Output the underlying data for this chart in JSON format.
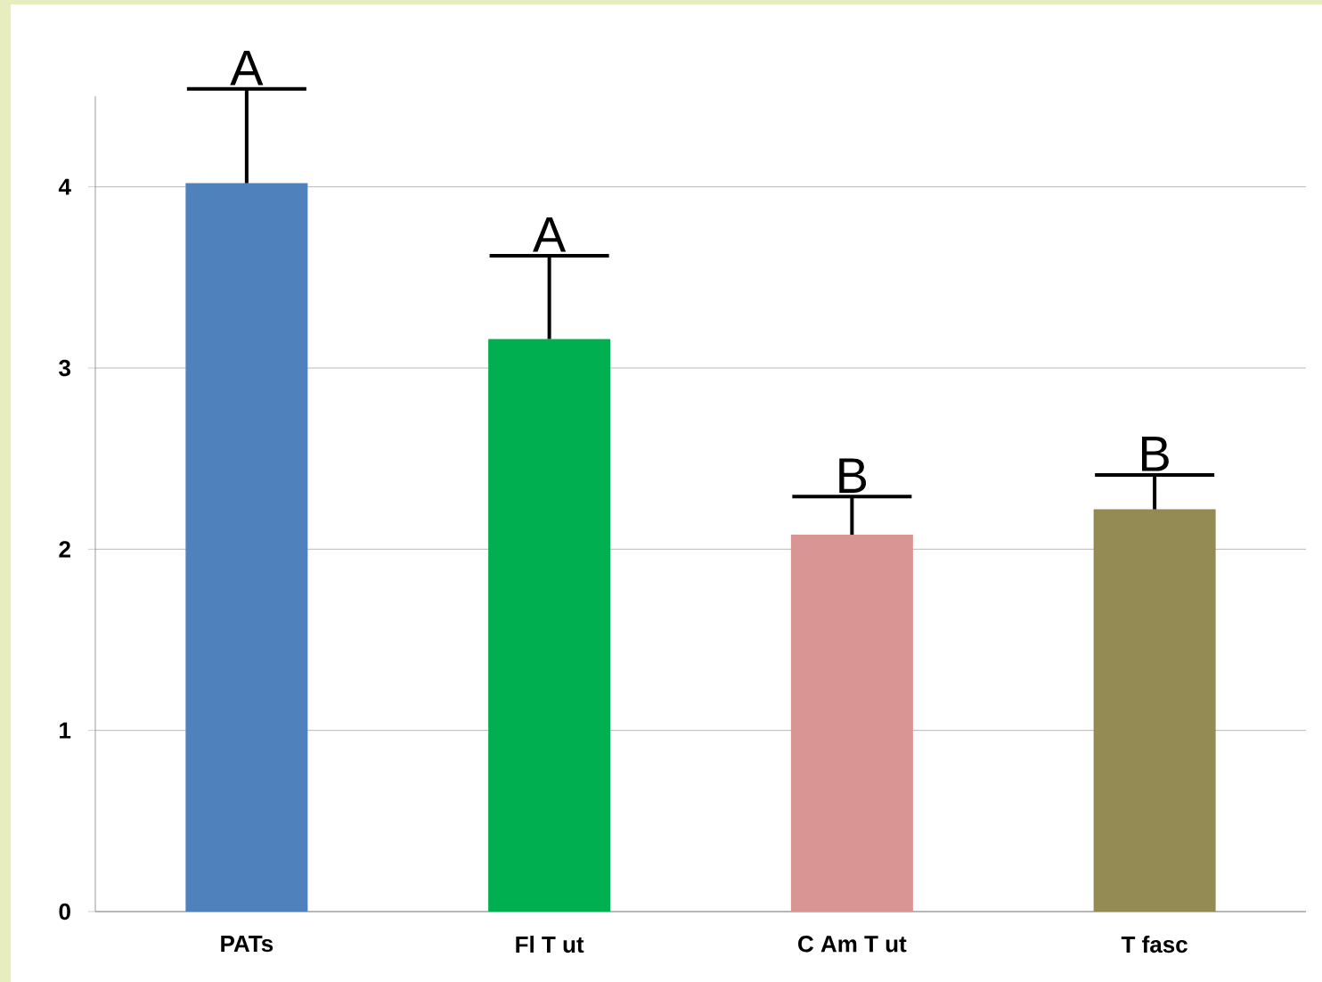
{
  "chart_data": {
    "type": "bar",
    "categories": [
      "PATs",
      "Fl T ut",
      "C Am T ut",
      "T fasc"
    ],
    "values": [
      4.02,
      3.16,
      2.08,
      2.22
    ],
    "colors": [
      "#4f81bd",
      "#00b050",
      "#d99594",
      "#948a54"
    ],
    "errors": [
      [
        4.02,
        4.54
      ],
      [
        3.16,
        3.62
      ],
      [
        2.08,
        2.29
      ],
      [
        2.22,
        2.41
      ]
    ],
    "ylim": [
      0,
      4.5
    ],
    "yticks": [
      0,
      1,
      2,
      3,
      4
    ],
    "grid": "y",
    "annotations": [
      "A",
      "A",
      "B",
      "B"
    ]
  }
}
